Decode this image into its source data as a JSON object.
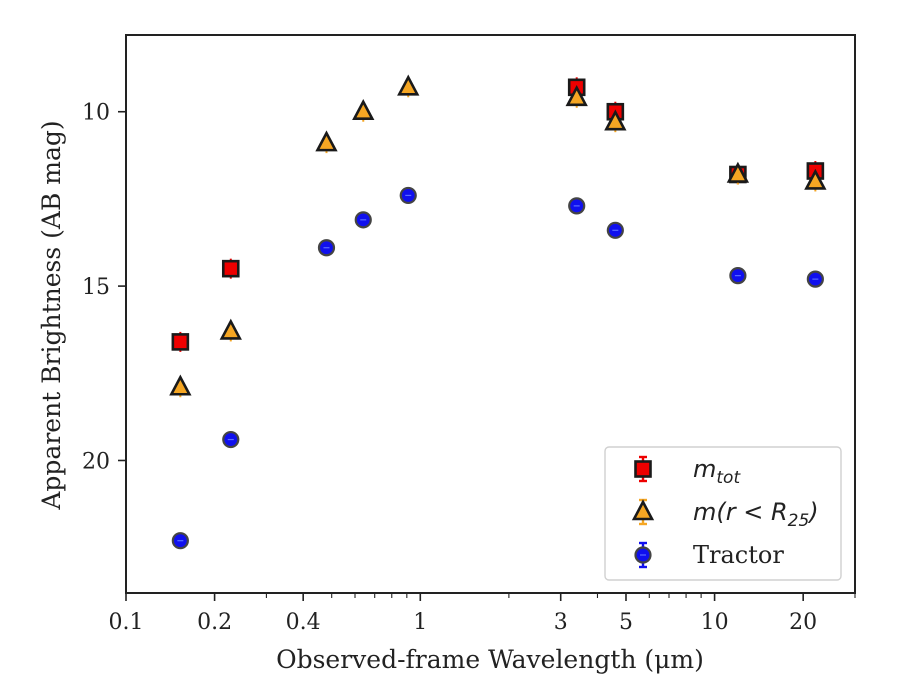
{
  "chart_data": {
    "type": "scatter",
    "xlabel": "Observed-frame Wavelength (μm)",
    "ylabel": "Apparent Brightness (AB mag)",
    "x_scale": "log",
    "y_inverted": true,
    "xlim": [
      0.1,
      30
    ],
    "ylim": [
      23.8,
      7.8
    ],
    "x_ticks": [
      0.1,
      0.2,
      0.4,
      1,
      3,
      5,
      10,
      20
    ],
    "x_tick_labels": [
      "0.1",
      "0.2",
      "0.4",
      "1",
      "3",
      "5",
      "10",
      "20"
    ],
    "y_ticks": [
      10,
      15,
      20
    ],
    "y_tick_labels": [
      "10",
      "15",
      "20"
    ],
    "grid": false,
    "legend_position": "lower right",
    "series": [
      {
        "name": "m_tot",
        "label_main": "m",
        "label_sub": "tot",
        "marker": "square",
        "color": "#ee0000",
        "errorbar_color": "#ee0000",
        "x": [
          0.153,
          0.227,
          3.4,
          4.6,
          12.0,
          22.0
        ],
        "y": [
          16.6,
          14.5,
          9.3,
          10.0,
          11.8,
          11.7
        ]
      },
      {
        "name": "m(r < R25)",
        "label_main": "m(r < R",
        "label_sub": "25",
        "label_close": ")",
        "marker": "triangle",
        "color": "#f5a623",
        "errorbar_color": "#f5a623",
        "x": [
          0.153,
          0.227,
          0.48,
          0.64,
          0.91,
          3.4,
          4.6,
          12.0,
          22.0
        ],
        "y": [
          17.9,
          16.3,
          10.9,
          10.0,
          9.3,
          9.6,
          10.3,
          11.8,
          12.0
        ]
      },
      {
        "name": "Tractor",
        "marker": "circle",
        "color": "#1010ee",
        "errorbar_color": "#1010ee",
        "x": [
          0.153,
          0.227,
          0.48,
          0.64,
          0.91,
          3.4,
          4.6,
          12.0,
          22.0
        ],
        "y": [
          22.3,
          19.4,
          13.9,
          13.1,
          12.4,
          12.7,
          13.4,
          14.7,
          14.8
        ]
      }
    ]
  }
}
